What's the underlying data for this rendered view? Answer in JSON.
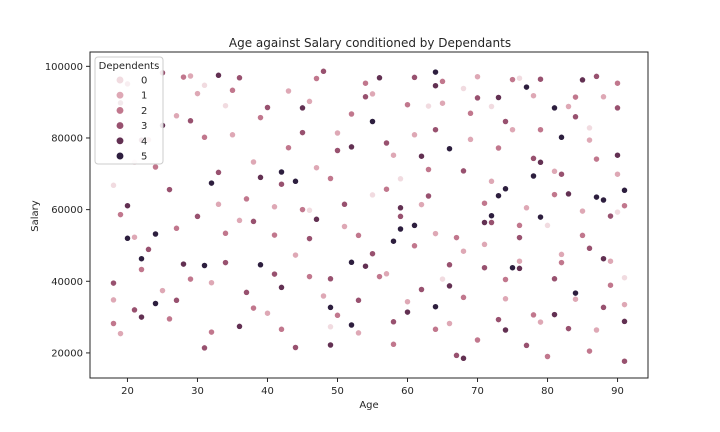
{
  "chart_data": {
    "type": "scatter",
    "title": "Age against Salary conditioned by Dependants",
    "xlabel": "Age",
    "ylabel": "Salary",
    "xlim": [
      14.65,
      94.35
    ],
    "ylim": [
      13000,
      104000
    ],
    "xticks": [
      20,
      30,
      40,
      50,
      60,
      70,
      80,
      90
    ],
    "yticks": [
      20000,
      40000,
      60000,
      80000,
      100000
    ],
    "grid": false,
    "legend": {
      "title": "Dependents",
      "placement": "top-left",
      "entries": [
        {
          "label": "0",
          "color": "#f1dbe0"
        },
        {
          "label": "1",
          "color": "#dea8b5"
        },
        {
          "label": "2",
          "color": "#c1778d"
        },
        {
          "label": "3",
          "color": "#98516f"
        },
        {
          "label": "4",
          "color": "#623052"
        },
        {
          "label": "5",
          "color": "#2d1e3e"
        }
      ]
    },
    "series": [
      {
        "name": "0",
        "points": [
          [
            19,
            80400
          ],
          [
            18,
            66800
          ],
          [
            21,
            73200
          ],
          [
            31,
            94700
          ],
          [
            34,
            89000
          ],
          [
            46,
            59800
          ],
          [
            49,
            27300
          ],
          [
            55,
            64100
          ],
          [
            59,
            68600
          ],
          [
            63,
            88900
          ],
          [
            65,
            40600
          ],
          [
            68,
            93800
          ],
          [
            72,
            88800
          ],
          [
            76,
            96700
          ],
          [
            80,
            55600
          ],
          [
            86,
            82800
          ],
          [
            90,
            59300
          ],
          [
            91,
            41000
          ]
        ]
      },
      {
        "name": "1",
        "points": [
          [
            18,
            34800
          ],
          [
            19,
            25400
          ],
          [
            21,
            52300
          ],
          [
            23,
            79500
          ],
          [
            25,
            37400
          ],
          [
            27,
            86200
          ],
          [
            29,
            97300
          ],
          [
            30,
            92400
          ],
          [
            32,
            39600
          ],
          [
            33,
            61500
          ],
          [
            35,
            80900
          ],
          [
            36,
            57000
          ],
          [
            38,
            73300
          ],
          [
            40,
            31100
          ],
          [
            41,
            60800
          ],
          [
            43,
            93100
          ],
          [
            44,
            47300
          ],
          [
            46,
            90200
          ],
          [
            47,
            71700
          ],
          [
            48,
            35900
          ],
          [
            50,
            81400
          ],
          [
            51,
            55300
          ],
          [
            53,
            25600
          ],
          [
            55,
            92300
          ],
          [
            57,
            42100
          ],
          [
            58,
            75200
          ],
          [
            60,
            34300
          ],
          [
            61,
            80900
          ],
          [
            62,
            61400
          ],
          [
            64,
            53300
          ],
          [
            65,
            89700
          ],
          [
            66,
            28200
          ],
          [
            68,
            48400
          ],
          [
            69,
            79600
          ],
          [
            70,
            97100
          ],
          [
            71,
            50300
          ],
          [
            72,
            67900
          ],
          [
            74,
            35100
          ],
          [
            75,
            82300
          ],
          [
            76,
            45600
          ],
          [
            77,
            60500
          ],
          [
            78,
            91800
          ],
          [
            79,
            28600
          ],
          [
            81,
            70700
          ],
          [
            82,
            47500
          ],
          [
            83,
            88800
          ],
          [
            84,
            35000
          ],
          [
            85,
            59600
          ],
          [
            86,
            79400
          ],
          [
            87,
            26400
          ],
          [
            88,
            91500
          ],
          [
            89,
            45600
          ],
          [
            90,
            69900
          ],
          [
            91,
            33500
          ]
        ]
      },
      {
        "name": "2",
        "points": [
          [
            18,
            28200
          ],
          [
            19,
            58600
          ],
          [
            20,
            95100
          ],
          [
            22,
            43300
          ],
          [
            24,
            71900
          ],
          [
            26,
            29500
          ],
          [
            27,
            54800
          ],
          [
            28,
            97000
          ],
          [
            29,
            40600
          ],
          [
            31,
            80200
          ],
          [
            32,
            25800
          ],
          [
            34,
            53400
          ],
          [
            35,
            93300
          ],
          [
            37,
            63000
          ],
          [
            38,
            32500
          ],
          [
            39,
            85700
          ],
          [
            41,
            52900
          ],
          [
            42,
            26600
          ],
          [
            43,
            77300
          ],
          [
            45,
            60000
          ],
          [
            46,
            41300
          ],
          [
            47,
            96600
          ],
          [
            49,
            68700
          ],
          [
            50,
            30500
          ],
          [
            52,
            86700
          ],
          [
            53,
            52800
          ],
          [
            54,
            95300
          ],
          [
            56,
            41300
          ],
          [
            57,
            65700
          ],
          [
            58,
            22400
          ],
          [
            60,
            89300
          ],
          [
            61,
            49900
          ],
          [
            63,
            71200
          ],
          [
            64,
            26600
          ],
          [
            65,
            95800
          ],
          [
            67,
            52200
          ],
          [
            68,
            35500
          ],
          [
            69,
            86900
          ],
          [
            70,
            23600
          ],
          [
            71,
            61800
          ],
          [
            73,
            77200
          ],
          [
            74,
            40500
          ],
          [
            75,
            96300
          ],
          [
            76,
            55600
          ],
          [
            78,
            30600
          ],
          [
            79,
            82300
          ],
          [
            80,
            19000
          ],
          [
            81,
            64200
          ],
          [
            82,
            45200
          ],
          [
            84,
            91400
          ],
          [
            85,
            52800
          ],
          [
            86,
            20500
          ],
          [
            87,
            74100
          ],
          [
            89,
            38900
          ],
          [
            90,
            95300
          ],
          [
            91,
            61100
          ]
        ]
      },
      {
        "name": "3",
        "points": [
          [
            18,
            39500
          ],
          [
            19,
            89800
          ],
          [
            21,
            32000
          ],
          [
            22,
            79400
          ],
          [
            23,
            48900
          ],
          [
            25,
            98200
          ],
          [
            26,
            65600
          ],
          [
            27,
            34700
          ],
          [
            29,
            84800
          ],
          [
            30,
            58100
          ],
          [
            31,
            21400
          ],
          [
            33,
            70400
          ],
          [
            34,
            45200
          ],
          [
            36,
            96800
          ],
          [
            37,
            36900
          ],
          [
            38,
            56700
          ],
          [
            40,
            88500
          ],
          [
            41,
            42000
          ],
          [
            42,
            67100
          ],
          [
            44,
            21500
          ],
          [
            45,
            81500
          ],
          [
            46,
            51900
          ],
          [
            48,
            98600
          ],
          [
            49,
            40700
          ],
          [
            50,
            76500
          ],
          [
            51,
            61500
          ],
          [
            53,
            34700
          ],
          [
            54,
            91500
          ],
          [
            55,
            47700
          ],
          [
            57,
            78600
          ],
          [
            58,
            28700
          ],
          [
            59,
            58100
          ],
          [
            61,
            96900
          ],
          [
            62,
            37700
          ],
          [
            63,
            63800
          ],
          [
            64,
            82300
          ],
          [
            66,
            44600
          ],
          [
            67,
            19300
          ],
          [
            68,
            70800
          ],
          [
            70,
            91200
          ],
          [
            71,
            43800
          ],
          [
            72,
            56400
          ],
          [
            73,
            29300
          ],
          [
            74,
            84600
          ],
          [
            76,
            52200
          ],
          [
            77,
            22100
          ],
          [
            78,
            74300
          ],
          [
            79,
            96400
          ],
          [
            81,
            40700
          ],
          [
            82,
            69900
          ],
          [
            83,
            26800
          ],
          [
            84,
            85900
          ],
          [
            86,
            49200
          ],
          [
            87,
            97200
          ],
          [
            88,
            32700
          ],
          [
            89,
            58200
          ],
          [
            90,
            88400
          ],
          [
            91,
            17700
          ]
        ]
      },
      {
        "name": "4",
        "points": [
          [
            20,
            61100
          ],
          [
            22,
            30000
          ],
          [
            25,
            83500
          ],
          [
            28,
            44800
          ],
          [
            33,
            97500
          ],
          [
            36,
            27400
          ],
          [
            39,
            69000
          ],
          [
            42,
            38300
          ],
          [
            45,
            88400
          ],
          [
            47,
            57300
          ],
          [
            49,
            22200
          ],
          [
            52,
            77500
          ],
          [
            54,
            44200
          ],
          [
            56,
            96800
          ],
          [
            59,
            60500
          ],
          [
            60,
            31400
          ],
          [
            62,
            74900
          ],
          [
            64,
            94600
          ],
          [
            66,
            38700
          ],
          [
            68,
            18500
          ],
          [
            71,
            56400
          ],
          [
            73,
            91300
          ],
          [
            74,
            26400
          ],
          [
            76,
            43600
          ],
          [
            79,
            73200
          ],
          [
            81,
            30700
          ],
          [
            83,
            64400
          ],
          [
            85,
            96200
          ],
          [
            88,
            46300
          ],
          [
            90,
            75200
          ],
          [
            91,
            28800
          ]
        ]
      },
      {
        "name": "5",
        "points": [
          [
            20,
            52000
          ],
          [
            22,
            46300
          ],
          [
            24,
            53200
          ],
          [
            24,
            33800
          ],
          [
            31,
            44400
          ],
          [
            32,
            67400
          ],
          [
            39,
            44600
          ],
          [
            42,
            70500
          ],
          [
            44,
            67900
          ],
          [
            49,
            32700
          ],
          [
            52,
            45300
          ],
          [
            52,
            27800
          ],
          [
            55,
            84600
          ],
          [
            58,
            51200
          ],
          [
            59,
            54600
          ],
          [
            61,
            55600
          ],
          [
            64,
            98400
          ],
          [
            64,
            32900
          ],
          [
            66,
            77000
          ],
          [
            72,
            58300
          ],
          [
            73,
            63900
          ],
          [
            74,
            65800
          ],
          [
            75,
            43800
          ],
          [
            77,
            94200
          ],
          [
            78,
            69400
          ],
          [
            79,
            57900
          ],
          [
            81,
            88400
          ],
          [
            82,
            80200
          ],
          [
            84,
            36700
          ],
          [
            87,
            63500
          ],
          [
            88,
            62700
          ],
          [
            91,
            65400
          ]
        ]
      }
    ]
  }
}
